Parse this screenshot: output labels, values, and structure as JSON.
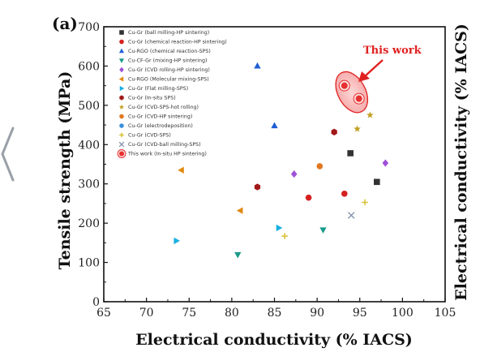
{
  "chart_data": {
    "type": "scatter",
    "panel_label": "(a)",
    "xlabel": "Electrical conductivity (% IACS)",
    "ylabel": "Tensile strength (MPa)",
    "y2label": "Electrical conductivity (% IACS)",
    "xlim": [
      65,
      105
    ],
    "ylim": [
      0,
      700
    ],
    "xticks": [
      "65",
      "70",
      "75",
      "80",
      "85",
      "90",
      "95",
      "100",
      "105"
    ],
    "yticks": [
      "0",
      "100",
      "200",
      "300",
      "400",
      "500",
      "600",
      "700"
    ],
    "grid": false,
    "legend_position": "top-left",
    "series": [
      {
        "name": "Cu-Gr (ball milling-HP sintering)",
        "marker": "square",
        "color": "#333333",
        "points": [
          [
            93.9,
            378
          ],
          [
            97,
            305
          ]
        ]
      },
      {
        "name": "Cu-Gr (chemical reaction-HP sintering)",
        "marker": "circle",
        "color": "#d62020",
        "points": [
          [
            89,
            265
          ],
          [
            93.2,
            275
          ]
        ]
      },
      {
        "name": "Cu-RGO (chemical reaction-SPS)",
        "marker": "triangle-up",
        "color": "#1f5fd6",
        "points": [
          [
            83,
            600
          ],
          [
            85,
            448
          ]
        ]
      },
      {
        "name": "Cu-CF-Gr (mixing-HP sintering)",
        "marker": "triangle-down",
        "color": "#1a9a8a",
        "points": [
          [
            80.7,
            120
          ],
          [
            90.7,
            183
          ]
        ]
      },
      {
        "name": "Cu-Gr (CVD rolling-HP sintering)",
        "marker": "diamond",
        "color": "#a050d8",
        "points": [
          [
            87.3,
            325
          ],
          [
            98,
            353
          ]
        ]
      },
      {
        "name": "Cu-RGO (Molecular mixing-SPS)",
        "marker": "triangle-left",
        "color": "#e08a10",
        "points": [
          [
            74.1,
            335
          ],
          [
            81,
            232
          ]
        ]
      },
      {
        "name": "Cu-Gr (Flat milling-SPS)",
        "marker": "triangle-right",
        "color": "#18b0e0",
        "points": [
          [
            73.5,
            155
          ],
          [
            85.5,
            188
          ]
        ]
      },
      {
        "name": "Cu-Gr (In-situ SPS)",
        "marker": "hexagon",
        "color": "#a01818",
        "points": [
          [
            83,
            292
          ],
          [
            92,
            432
          ]
        ]
      },
      {
        "name": "Cu-Gr (CVD-SPS-hot rolling)",
        "marker": "star",
        "color": "#c0a020",
        "points": [
          [
            94.7,
            440
          ],
          [
            96.2,
            475
          ]
        ]
      },
      {
        "name": "Cu-Gr (CVD-HP sintering)",
        "marker": "circle",
        "color": "#e07820",
        "points": [
          [
            90.3,
            345
          ]
        ]
      },
      {
        "name": "Cu-Gr (electrodeposition)",
        "marker": "circle",
        "color": "#3a90e0",
        "points": []
      },
      {
        "name": "Cu-Gr (CVD-SPS)",
        "marker": "plus",
        "color": "#d8c030",
        "points": [
          [
            86.2,
            167
          ],
          [
            95.6,
            253
          ]
        ]
      },
      {
        "name": "Cu-Gr (CVD-ball milling-SPS)",
        "marker": "x",
        "color": "#8090a8",
        "points": [
          [
            94,
            220
          ]
        ]
      },
      {
        "name": "This work (In-situ HP sintering)",
        "marker": "circle-highlight",
        "color": "#e83030",
        "points": [
          [
            93.2,
            550
          ],
          [
            94.9,
            517
          ]
        ]
      }
    ],
    "annotations": [
      {
        "text": "This work",
        "color": "#e02020"
      }
    ]
  },
  "ui": {
    "nav_arrow_icon": "chevron-left-icon"
  }
}
